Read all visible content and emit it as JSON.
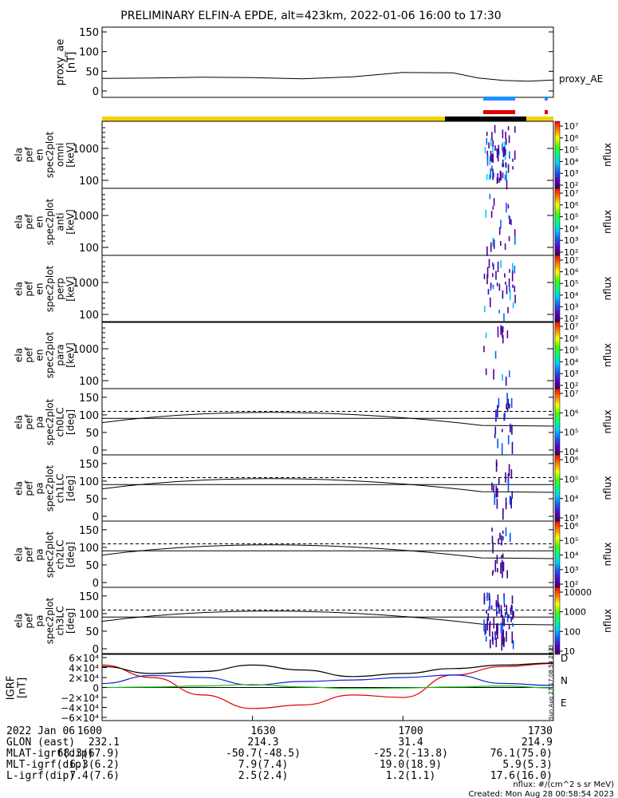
{
  "title": "PRELIMINARY ELFIN-A EPDE, alt=423km, 2022-01-06 16:00 to 17:30",
  "proxy_panel": {
    "ylabel": [
      "proxy_ae",
      "[nT]"
    ],
    "yticks": [
      "150",
      "100",
      "50",
      "0"
    ],
    "legend": "proxy_AE"
  },
  "energy_panels": [
    {
      "ylabel": [
        "ela",
        "pef",
        "en",
        "spec2plot",
        "omni",
        "[keV]"
      ],
      "yticks": [
        "1000",
        "100"
      ]
    },
    {
      "ylabel": [
        "ela",
        "pef",
        "en",
        "spec2plot",
        "anti",
        "[keV]"
      ],
      "yticks": [
        "1000",
        "100"
      ]
    },
    {
      "ylabel": [
        "ela",
        "pef",
        "en",
        "spec2plot",
        "perp",
        "[keV]"
      ],
      "yticks": [
        "1000",
        "100"
      ]
    },
    {
      "ylabel": [
        "ela",
        "pef",
        "en",
        "spec2plot",
        "para",
        "[keV]"
      ],
      "yticks": [
        "1000",
        "100"
      ]
    }
  ],
  "pa_panels": [
    {
      "ylabel": [
        "ela",
        "pef",
        "pa",
        "spec2plot",
        "ch0LC",
        "[deg]"
      ],
      "yticks": [
        "150",
        "100",
        "50",
        "0"
      ]
    },
    {
      "ylabel": [
        "ela",
        "pef",
        "pa",
        "spec2plot",
        "ch1LC",
        "[deg]"
      ],
      "yticks": [
        "150",
        "100",
        "50",
        "0"
      ]
    },
    {
      "ylabel": [
        "ela",
        "pef",
        "pa",
        "spec2plot",
        "ch2LC",
        "[deg]"
      ],
      "yticks": [
        "150",
        "100",
        "50",
        "0"
      ]
    },
    {
      "ylabel": [
        "ela",
        "pef",
        "pa",
        "spec2plot",
        "ch3LC",
        "[deg]"
      ],
      "yticks": [
        "150",
        "100",
        "50",
        "0"
      ]
    }
  ],
  "colorbars": [
    {
      "label": "nflux",
      "ticks": [
        "10⁷",
        "10⁶",
        "10⁵",
        "10⁴",
        "10³",
        "10²"
      ]
    },
    {
      "label": "nflux",
      "ticks": [
        "10⁷",
        "10⁶",
        "10⁵",
        "10⁴",
        "10³",
        "10²"
      ]
    },
    {
      "label": "nflux",
      "ticks": [
        "10⁷",
        "10⁶",
        "10⁵",
        "10⁴",
        "10³",
        "10²"
      ]
    },
    {
      "label": "nflux",
      "ticks": [
        "10⁷",
        "10⁶",
        "10⁵",
        "10⁴",
        "10³",
        "10²"
      ]
    },
    {
      "label": "nflux",
      "ticks": [
        "10⁷",
        "10⁶",
        "10⁵",
        "10⁴"
      ]
    },
    {
      "label": "nflux",
      "ticks": [
        "10⁶",
        "10⁵",
        "10⁴",
        "10³"
      ]
    },
    {
      "label": "nflux",
      "ticks": [
        "10⁶",
        "10⁵",
        "10⁴",
        "10³",
        "10²"
      ]
    },
    {
      "label": "nflux",
      "ticks": [
        "10000",
        "1000",
        "100",
        "10"
      ]
    }
  ],
  "igrf_panel": {
    "ylabel": [
      "IGRF",
      "[nT]"
    ],
    "yticks": [
      "6×10⁴",
      "4×10⁴",
      "2×10⁴",
      "0",
      "−2×10⁴",
      "−4×10⁴",
      "−6×10⁴"
    ],
    "legend": [
      "D",
      "N",
      "E"
    ],
    "side_stamp": "Sun Aug 27 17:08:54 2023"
  },
  "colors": {
    "red": "#e00000",
    "blue": "#1020d0",
    "green": "#10c010",
    "yellow": "#f4d20a",
    "sky": "#1e90ff"
  },
  "chart_data": {
    "type": "line",
    "time_range": [
      "2022-01-06 16:00",
      "2022-01-06 17:30"
    ],
    "proxy_ae": {
      "t": [
        "16:00",
        "16:10",
        "16:20",
        "16:30",
        "16:40",
        "16:50",
        "17:00",
        "17:10",
        "17:15",
        "17:20",
        "17:25",
        "17:30"
      ],
      "values": [
        32,
        33,
        35,
        34,
        31,
        36,
        47,
        46,
        33,
        27,
        25,
        28
      ],
      "ylim": [
        0,
        150
      ]
    },
    "pa_boundary_dashed": 110,
    "pa_boundary_solid": 90,
    "igrf": {
      "t": [
        "16:00",
        "16:10",
        "16:20",
        "16:30",
        "16:40",
        "16:50",
        "17:00",
        "17:10",
        "17:20",
        "17:30"
      ],
      "series": [
        {
          "name": "D",
          "values": [
            45000,
            20000,
            -15000,
            -42000,
            -35000,
            -15000,
            -20000,
            25000,
            42000,
            48000
          ]
        },
        {
          "name": "N",
          "values": [
            8000,
            24000,
            20000,
            5000,
            12000,
            15000,
            20000,
            25000,
            8000,
            4000
          ]
        },
        {
          "name": "E",
          "values": [
            0,
            1000,
            3000,
            6000,
            1000,
            -2000,
            -1000,
            1000,
            3000,
            -1000
          ]
        },
        {
          "name": "",
          "values": [
            42000,
            28000,
            32000,
            45000,
            35000,
            22000,
            28000,
            38000,
            45000,
            49000
          ]
        }
      ],
      "ylim": [
        -60000,
        60000
      ]
    }
  },
  "footer": {
    "rows": [
      [
        "2022 Jan 06",
        "1600",
        "1630",
        "1700",
        "1730"
      ],
      [
        "GLON (east)",
        "232.1",
        "214.3",
        "31.4",
        "214.9"
      ],
      [
        "MLAT-igrf(dip)",
        "68.3(67.9)",
        "-50.7(-48.5)",
        "-25.2(-13.8)",
        "76.1(75.0)"
      ],
      [
        "MLT-igrf(dip)",
        "6.3(6.2)",
        "7.9(7.4)",
        "19.0(18.9)",
        "5.9(5.3)"
      ],
      [
        "L-igrf(dip)",
        "7.4(7.6)",
        "2.5(2.4)",
        "1.2(1.1)",
        "17.6(16.0)"
      ]
    ],
    "unit_note": "nflux: #/(cm^2 s sr MeV)",
    "created": "Created: Mon Aug 28 00:58:54 2023"
  }
}
